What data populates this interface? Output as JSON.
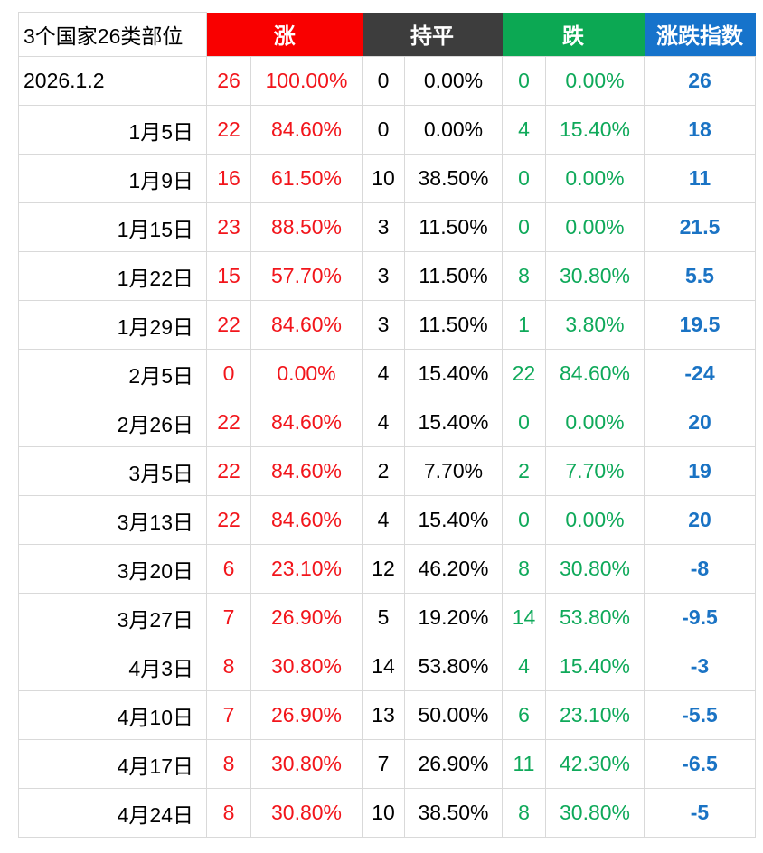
{
  "chart_data": {
    "type": "table",
    "title": "3个国家26类部位",
    "column_groups": [
      "涨",
      "持平",
      "跌",
      "涨跌指数"
    ],
    "rows": [
      {
        "date": "2026.1.2",
        "rise_n": "26",
        "rise_pct": "100.00%",
        "flat_n": "0",
        "flat_pct": "0.00%",
        "fall_n": "0",
        "fall_pct": "0.00%",
        "index": "26"
      },
      {
        "date": "1月5日",
        "rise_n": "22",
        "rise_pct": "84.60%",
        "flat_n": "0",
        "flat_pct": "0.00%",
        "fall_n": "4",
        "fall_pct": "15.40%",
        "index": "18"
      },
      {
        "date": "1月9日",
        "rise_n": "16",
        "rise_pct": "61.50%",
        "flat_n": "10",
        "flat_pct": "38.50%",
        "fall_n": "0",
        "fall_pct": "0.00%",
        "index": "11"
      },
      {
        "date": "1月15日",
        "rise_n": "23",
        "rise_pct": "88.50%",
        "flat_n": "3",
        "flat_pct": "11.50%",
        "fall_n": "0",
        "fall_pct": "0.00%",
        "index": "21.5"
      },
      {
        "date": "1月22日",
        "rise_n": "15",
        "rise_pct": "57.70%",
        "flat_n": "3",
        "flat_pct": "11.50%",
        "fall_n": "8",
        "fall_pct": "30.80%",
        "index": "5.5"
      },
      {
        "date": "1月29日",
        "rise_n": "22",
        "rise_pct": "84.60%",
        "flat_n": "3",
        "flat_pct": "11.50%",
        "fall_n": "1",
        "fall_pct": "3.80%",
        "index": "19.5"
      },
      {
        "date": "2月5日",
        "rise_n": "0",
        "rise_pct": "0.00%",
        "flat_n": "4",
        "flat_pct": "15.40%",
        "fall_n": "22",
        "fall_pct": "84.60%",
        "index": "-24"
      },
      {
        "date": "2月26日",
        "rise_n": "22",
        "rise_pct": "84.60%",
        "flat_n": "4",
        "flat_pct": "15.40%",
        "fall_n": "0",
        "fall_pct": "0.00%",
        "index": "20"
      },
      {
        "date": "3月5日",
        "rise_n": "22",
        "rise_pct": "84.60%",
        "flat_n": "2",
        "flat_pct": "7.70%",
        "fall_n": "2",
        "fall_pct": "7.70%",
        "index": "19"
      },
      {
        "date": "3月13日",
        "rise_n": "22",
        "rise_pct": "84.60%",
        "flat_n": "4",
        "flat_pct": "15.40%",
        "fall_n": "0",
        "fall_pct": "0.00%",
        "index": "20"
      },
      {
        "date": "3月20日",
        "rise_n": "6",
        "rise_pct": "23.10%",
        "flat_n": "12",
        "flat_pct": "46.20%",
        "fall_n": "8",
        "fall_pct": "30.80%",
        "index": "-8"
      },
      {
        "date": "3月27日",
        "rise_n": "7",
        "rise_pct": "26.90%",
        "flat_n": "5",
        "flat_pct": "19.20%",
        "fall_n": "14",
        "fall_pct": "53.80%",
        "index": "-9.5"
      },
      {
        "date": "4月3日",
        "rise_n": "8",
        "rise_pct": "30.80%",
        "flat_n": "14",
        "flat_pct": "53.80%",
        "fall_n": "4",
        "fall_pct": "15.40%",
        "index": "-3"
      },
      {
        "date": "4月10日",
        "rise_n": "7",
        "rise_pct": "26.90%",
        "flat_n": "13",
        "flat_pct": "50.00%",
        "fall_n": "6",
        "fall_pct": "23.10%",
        "index": "-5.5"
      },
      {
        "date": "4月17日",
        "rise_n": "8",
        "rise_pct": "30.80%",
        "flat_n": "7",
        "flat_pct": "26.90%",
        "fall_n": "11",
        "fall_pct": "42.30%",
        "index": "-6.5"
      },
      {
        "date": "4月24日",
        "rise_n": "8",
        "rise_pct": "30.80%",
        "flat_n": "10",
        "flat_pct": "38.50%",
        "fall_n": "8",
        "fall_pct": "30.80%",
        "index": "-5"
      }
    ]
  },
  "colors": {
    "rise_header_bg": "#f90000",
    "flat_header_bg": "#3d3d3d",
    "fall_header_bg": "#0ca853",
    "index_header_bg": "#1673cb",
    "rise_text": "#f2151b",
    "flat_text": "#000000",
    "fall_text": "#0fa95a",
    "index_text": "#1a73c4",
    "grid_line": "#d9d9d9"
  }
}
